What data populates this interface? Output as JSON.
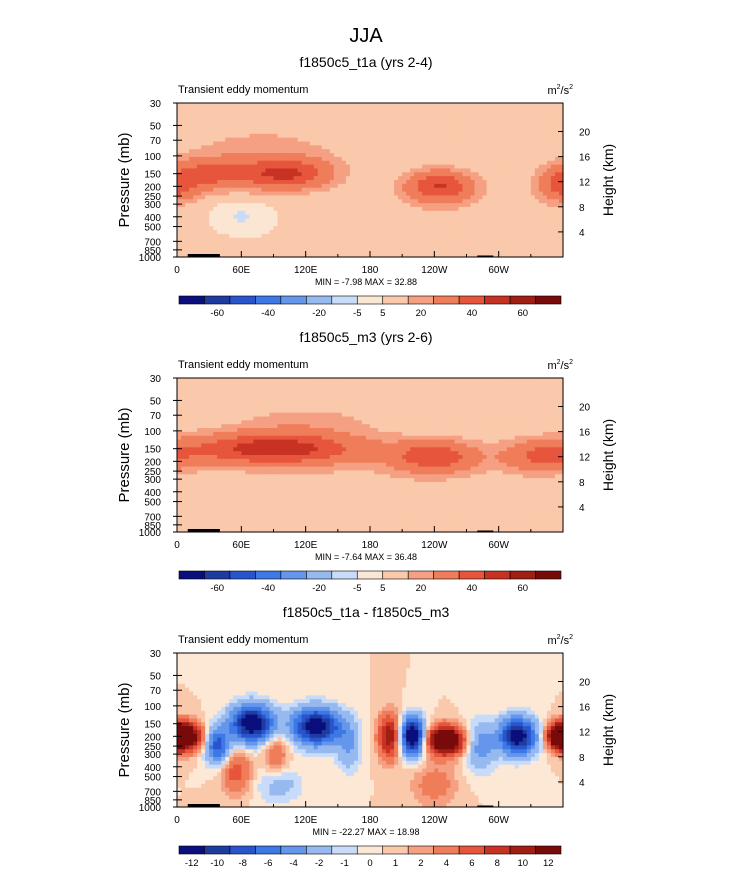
{
  "page_title": "JJA",
  "colors": {
    "top_scale": [
      "#0a0f7d",
      "#1e3ca0",
      "#2855cd",
      "#3c78e6",
      "#6496eb",
      "#96b9f0",
      "#c8dcfa",
      "#fae6d2",
      "#fac8aa",
      "#f5a082",
      "#f07d5a",
      "#e6553c",
      "#c83223",
      "#a01e14",
      "#780a0a"
    ],
    "diff_scale": [
      "#0a0f7d",
      "#1e3ca0",
      "#2855cd",
      "#3c78e6",
      "#6496eb",
      "#96b9f0",
      "#c8dcfa",
      "#fde8d6",
      "#fac8aa",
      "#f5a082",
      "#f07d5a",
      "#e6553c",
      "#c83223",
      "#a01e14",
      "#780a0a"
    ],
    "background_field": "#d6e8fa",
    "frame": "#000000"
  },
  "chart_data": [
    {
      "type": "heatmap",
      "title": "f1850c5_t1a (yrs 2-4)",
      "subtitle_left": "Transient eddy momentum",
      "units_base": "m",
      "units_exp": "2",
      "units_sep": "/s",
      "units_exp2": "2",
      "ylabel": "Pressure (mb)",
      "ylabel_right": "Height (km)",
      "x_ticks": [
        "0",
        "60E",
        "120E",
        "180",
        "120W",
        "60W"
      ],
      "x_values": [
        0,
        60,
        120,
        180,
        240,
        300
      ],
      "xlim": [
        0,
        360
      ],
      "y_ticks": [
        "30",
        "50",
        "70",
        "100",
        "150",
        "200",
        "250",
        "300",
        "400",
        "500",
        "700",
        "850",
        "1000"
      ],
      "y_values": [
        30,
        50,
        70,
        100,
        150,
        200,
        250,
        300,
        400,
        500,
        700,
        850,
        1000
      ],
      "ylim": [
        30,
        1000
      ],
      "height_ticks": [
        "20",
        "16",
        "12",
        "8",
        "4"
      ],
      "height_values": [
        20,
        16,
        12,
        8,
        4
      ],
      "minmax": "MIN =  -7.98  MAX =  32.88",
      "colorbar_labels": [
        "-60",
        "-40",
        "-20",
        "-5",
        "5",
        "20",
        "40",
        "60"
      ],
      "colorbar_levels": [
        -70,
        -60,
        -50,
        -40,
        -30,
        -20,
        -10,
        -5,
        0,
        5,
        10,
        20,
        30,
        40,
        50,
        60
      ],
      "blobs": [
        {
          "lon": 30,
          "p": 150,
          "sx": 25,
          "sy": 0.25,
          "v": 22
        },
        {
          "lon": 100,
          "p": 150,
          "sx": 30,
          "sy": 0.25,
          "v": 32
        },
        {
          "lon": 245,
          "p": 200,
          "sx": 22,
          "sy": 0.25,
          "v": 30
        },
        {
          "lon": 358,
          "p": 200,
          "sx": 15,
          "sy": 0.25,
          "v": 22
        },
        {
          "lon": 80,
          "p": 80,
          "sx": 60,
          "sy": 0.4,
          "v": 6
        },
        {
          "lon": 250,
          "p": 500,
          "sx": 80,
          "sy": 0.6,
          "v": 3
        },
        {
          "lon": 60,
          "p": 400,
          "sx": 15,
          "sy": 0.2,
          "v": -6
        }
      ]
    },
    {
      "type": "heatmap",
      "title": "f1850c5_m3 (yrs 2-6)",
      "subtitle_left": "Transient eddy momentum",
      "units_base": "m",
      "units_exp": "2",
      "units_sep": "/s",
      "units_exp2": "2",
      "ylabel": "Pressure (mb)",
      "ylabel_right": "Height (km)",
      "x_ticks": [
        "0",
        "60E",
        "120E",
        "180",
        "120W",
        "60W"
      ],
      "x_values": [
        0,
        60,
        120,
        180,
        240,
        300
      ],
      "xlim": [
        0,
        360
      ],
      "y_ticks": [
        "30",
        "50",
        "70",
        "100",
        "150",
        "200",
        "250",
        "300",
        "400",
        "500",
        "700",
        "850",
        "1000"
      ],
      "y_values": [
        30,
        50,
        70,
        100,
        150,
        200,
        250,
        300,
        400,
        500,
        700,
        850,
        1000
      ],
      "ylim": [
        30,
        1000
      ],
      "height_ticks": [
        "20",
        "16",
        "12",
        "8",
        "4"
      ],
      "height_values": [
        20,
        16,
        12,
        8,
        4
      ],
      "minmax": "MIN =  -7.64  MAX =  36.48",
      "colorbar_labels": [
        "-60",
        "-40",
        "-20",
        "-5",
        "5",
        "20",
        "40",
        "60"
      ],
      "colorbar_levels": [
        -70,
        -60,
        -50,
        -40,
        -30,
        -20,
        -10,
        -5,
        0,
        5,
        10,
        20,
        30,
        40,
        50,
        60
      ],
      "blobs": [
        {
          "lon": 90,
          "p": 150,
          "sx": 55,
          "sy": 0.25,
          "v": 36
        },
        {
          "lon": 240,
          "p": 180,
          "sx": 28,
          "sy": 0.25,
          "v": 26
        },
        {
          "lon": 340,
          "p": 180,
          "sx": 25,
          "sy": 0.25,
          "v": 20
        },
        {
          "lon": 180,
          "p": 300,
          "sx": 120,
          "sy": 0.8,
          "v": 3
        },
        {
          "lon": 120,
          "p": 80,
          "sx": 50,
          "sy": 0.3,
          "v": 6
        }
      ]
    },
    {
      "type": "heatmap",
      "title": "f1850c5_t1a - f1850c5_m3",
      "subtitle_left": "Transient eddy momentum",
      "units_base": "m",
      "units_exp": "2",
      "units_sep": "/s",
      "units_exp2": "2",
      "ylabel": "Pressure (mb)",
      "ylabel_right": "Height (km)",
      "x_ticks": [
        "0",
        "60E",
        "120E",
        "180",
        "120W",
        "60W"
      ],
      "x_values": [
        0,
        60,
        120,
        180,
        240,
        300
      ],
      "xlim": [
        0,
        360
      ],
      "y_ticks": [
        "30",
        "50",
        "70",
        "100",
        "150",
        "200",
        "250",
        "300",
        "400",
        "500",
        "700",
        "850",
        "1000"
      ],
      "y_values": [
        30,
        50,
        70,
        100,
        150,
        200,
        250,
        300,
        400,
        500,
        700,
        850,
        1000
      ],
      "ylim": [
        30,
        1000
      ],
      "height_ticks": [
        "20",
        "16",
        "12",
        "8",
        "4"
      ],
      "height_values": [
        20,
        16,
        12,
        8,
        4
      ],
      "minmax": "MIN = -22.27  MAX =  18.98",
      "colorbar_labels": [
        "-12",
        "-10",
        "-8",
        "-6",
        "-4",
        "-2",
        "-1",
        "0",
        "1",
        "2",
        "4",
        "6",
        "8",
        "10",
        "12"
      ],
      "colorbar_levels": [
        -14,
        -12,
        -10,
        -8,
        -6,
        -4,
        -2,
        -1,
        0,
        1,
        2,
        4,
        6,
        8,
        10,
        12
      ],
      "blobs": [
        {
          "lon": 8,
          "p": 200,
          "sx": 10,
          "sy": 0.22,
          "v": 16
        },
        {
          "lon": 38,
          "p": 250,
          "sx": 8,
          "sy": 0.3,
          "v": -9
        },
        {
          "lon": 70,
          "p": 150,
          "sx": 14,
          "sy": 0.3,
          "v": -15
        },
        {
          "lon": 55,
          "p": 450,
          "sx": 10,
          "sy": 0.35,
          "v": 5
        },
        {
          "lon": 92,
          "p": 300,
          "sx": 8,
          "sy": 0.35,
          "v": 4
        },
        {
          "lon": 130,
          "p": 160,
          "sx": 16,
          "sy": 0.3,
          "v": -14
        },
        {
          "lon": 160,
          "p": 250,
          "sx": 8,
          "sy": 0.4,
          "v": -4
        },
        {
          "lon": 198,
          "p": 200,
          "sx": 7,
          "sy": 0.35,
          "v": 10
        },
        {
          "lon": 220,
          "p": 200,
          "sx": 8,
          "sy": 0.3,
          "v": -16
        },
        {
          "lon": 250,
          "p": 220,
          "sx": 12,
          "sy": 0.22,
          "v": 18
        },
        {
          "lon": 283,
          "p": 250,
          "sx": 10,
          "sy": 0.4,
          "v": -5
        },
        {
          "lon": 318,
          "p": 200,
          "sx": 12,
          "sy": 0.3,
          "v": -14
        },
        {
          "lon": 356,
          "p": 200,
          "sx": 8,
          "sy": 0.2,
          "v": 14
        },
        {
          "lon": 240,
          "p": 600,
          "sx": 15,
          "sy": 0.35,
          "v": 3
        },
        {
          "lon": 95,
          "p": 600,
          "sx": 15,
          "sy": 0.3,
          "v": -3
        }
      ]
    }
  ]
}
